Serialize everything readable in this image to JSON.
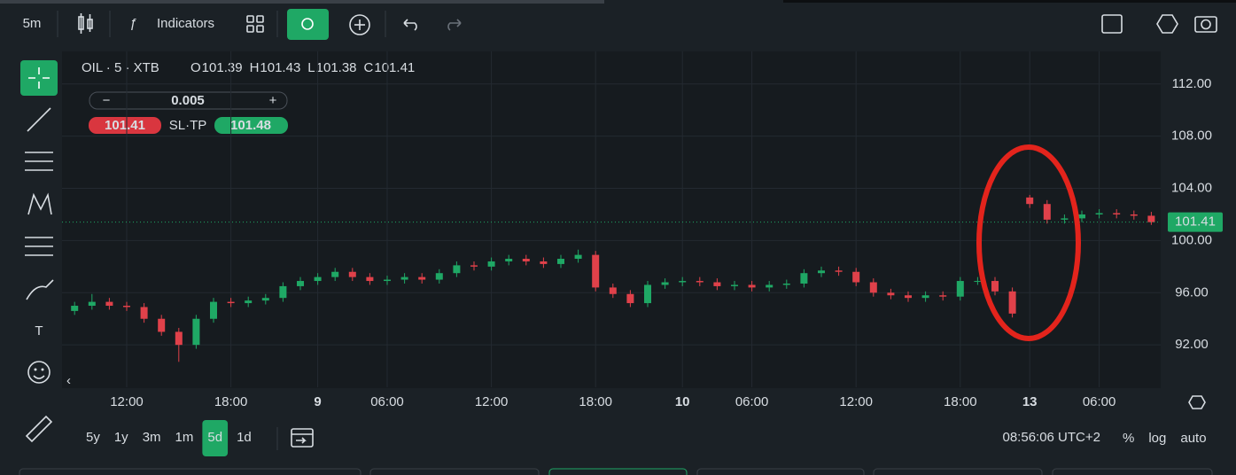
{
  "ui": {
    "timeframe": "5m",
    "indicators": "Indicators",
    "symbol": "OIL · 5 · XTB",
    "ohlc": [
      {
        "key": "O",
        "value": "101.39"
      },
      {
        "key": "H",
        "value": "101.43"
      },
      {
        "key": "L",
        "value": "101.38"
      },
      {
        "key": "C",
        "value": "101.41"
      }
    ],
    "order": {
      "quantity": "0.005",
      "sell": "101.41",
      "sltp": "SL·TP",
      "buy": "101.48"
    },
    "ranges": [
      "5y",
      "1y",
      "3m",
      "1m",
      "5d",
      "1d"
    ],
    "active_range": "5d",
    "clock": "08:56:06 UTC+2",
    "scale_options": [
      "%",
      "log",
      "auto"
    ]
  },
  "chart_data": {
    "type": "candlestick",
    "up_color": "#1fa865",
    "down_color": "#e0414a",
    "grid": true,
    "categories": [
      null,
      null,
      null,
      "12:00",
      null,
      null,
      null,
      null,
      null,
      "18:00",
      null,
      null,
      null,
      null,
      "9",
      null,
      null,
      null,
      "06:00",
      null,
      null,
      null,
      null,
      null,
      "12:00",
      null,
      null,
      null,
      null,
      null,
      "18:00",
      null,
      null,
      null,
      null,
      "10",
      null,
      null,
      null,
      "06:00",
      null,
      null,
      null,
      null,
      null,
      "12:00",
      null,
      null,
      null,
      null,
      null,
      "18:00",
      null,
      null,
      null,
      "13",
      null,
      null,
      null,
      "06:00",
      null,
      null,
      null
    ],
    "open": [
      94.6,
      95.0,
      95.3,
      95.0,
      94.9,
      94.0,
      93.0,
      92.0,
      94.0,
      95.3,
      95.2,
      95.4,
      95.6,
      96.5,
      96.9,
      97.2,
      97.6,
      97.2,
      96.9,
      97.0,
      97.2,
      97.0,
      97.5,
      98.1,
      98.0,
      98.4,
      98.6,
      98.4,
      98.2,
      98.6,
      98.9,
      96.4,
      95.9,
      95.2,
      96.6,
      96.8,
      96.9,
      96.8,
      96.5,
      96.6,
      96.4,
      96.6,
      96.7,
      97.5,
      97.7,
      97.6,
      96.8,
      96.0,
      95.8,
      95.6,
      95.8,
      95.7,
      96.9,
      96.9,
      96.1,
      103.3,
      102.8,
      101.6,
      101.7,
      102.0,
      102.1,
      102.0,
      101.9
    ],
    "high": [
      95.3,
      95.9,
      95.6,
      95.3,
      95.2,
      94.3,
      93.3,
      94.3,
      95.6,
      95.6,
      95.7,
      95.9,
      96.8,
      97.2,
      97.5,
      97.9,
      97.9,
      97.5,
      97.3,
      97.5,
      97.5,
      97.8,
      98.4,
      98.4,
      98.7,
      98.9,
      98.9,
      98.7,
      98.9,
      99.3,
      99.2,
      96.7,
      96.2,
      96.9,
      97.1,
      97.2,
      97.2,
      97.1,
      96.9,
      96.9,
      96.9,
      97.0,
      97.8,
      98.0,
      98.0,
      97.9,
      97.1,
      96.3,
      96.1,
      96.1,
      96.1,
      97.2,
      97.2,
      97.2,
      96.4,
      103.5,
      103.1,
      102.0,
      102.3,
      102.4,
      102.4,
      102.3,
      102.2
    ],
    "low": [
      94.3,
      94.7,
      94.7,
      94.6,
      93.7,
      92.7,
      90.7,
      91.7,
      93.7,
      94.9,
      94.9,
      95.1,
      95.3,
      96.2,
      96.6,
      96.9,
      96.9,
      96.6,
      96.6,
      96.7,
      96.7,
      96.7,
      97.2,
      97.7,
      97.7,
      98.1,
      98.1,
      97.9,
      97.9,
      98.3,
      96.1,
      95.6,
      94.9,
      94.9,
      96.3,
      96.5,
      96.5,
      96.2,
      96.2,
      96.1,
      96.1,
      96.3,
      96.4,
      97.2,
      97.3,
      96.5,
      95.7,
      95.5,
      95.3,
      95.3,
      95.4,
      95.4,
      96.6,
      95.8,
      94.1,
      102.5,
      101.3,
      101.3,
      101.4,
      101.7,
      101.7,
      101.6,
      101.2
    ],
    "close": [
      95.0,
      95.3,
      95.0,
      94.9,
      94.0,
      93.0,
      92.0,
      94.0,
      95.3,
      95.2,
      95.4,
      95.6,
      96.5,
      96.9,
      97.2,
      97.6,
      97.2,
      96.9,
      97.0,
      97.2,
      97.0,
      97.5,
      98.1,
      98.0,
      98.4,
      98.6,
      98.4,
      98.2,
      98.6,
      98.9,
      96.4,
      95.9,
      95.2,
      96.6,
      96.8,
      96.9,
      96.8,
      96.5,
      96.6,
      96.4,
      96.6,
      96.7,
      97.5,
      97.7,
      97.6,
      96.8,
      96.0,
      95.8,
      95.6,
      95.8,
      95.7,
      96.9,
      96.9,
      96.1,
      94.4,
      102.8,
      101.6,
      101.7,
      102.0,
      102.1,
      102.0,
      101.9,
      101.41
    ],
    "last_price": 101.41,
    "last_price_color": "#1fa865",
    "ylim": [
      88.75,
      114.5
    ],
    "yticks": [
      {
        "value": 92,
        "label": "92.00"
      },
      {
        "value": 96,
        "label": "96.00"
      },
      {
        "value": 100,
        "label": "100.00"
      },
      {
        "value": 104,
        "label": "104.00"
      },
      {
        "value": 108,
        "label": "108.00"
      },
      {
        "value": 112,
        "label": "112.00"
      }
    ]
  }
}
